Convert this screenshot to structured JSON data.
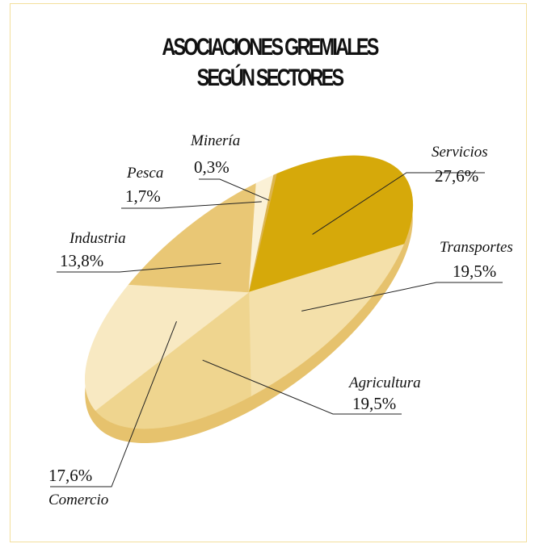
{
  "chart_data": {
    "type": "pie",
    "title_lines": [
      "ASOCIACIONES GREMIALES",
      "SEGÚN SECTORES"
    ],
    "slices": [
      {
        "name": "Servicios",
        "label": "27,6%",
        "value": 27.6,
        "color": "#d6a90a"
      },
      {
        "name": "Transportes",
        "label": "19,5%",
        "value": 19.5,
        "color": "#f4e0aa"
      },
      {
        "name": "Agricultura",
        "label": "19,5%",
        "value": 19.5,
        "color": "#efd58f"
      },
      {
        "name": "Comercio",
        "label": "17,6%",
        "value": 17.6,
        "color": "#f8e9c2"
      },
      {
        "name": "Industria",
        "label": "13,8%",
        "value": 13.8,
        "color": "#e9c775"
      },
      {
        "name": "Pesca",
        "label": "1,7%",
        "value": 1.7,
        "color": "#fbf1d6"
      },
      {
        "name": "Minería",
        "label": "0,3%",
        "value": 0.3,
        "color": "#dcb550"
      }
    ],
    "edge_color": "#e6c26d",
    "legend": "none"
  }
}
